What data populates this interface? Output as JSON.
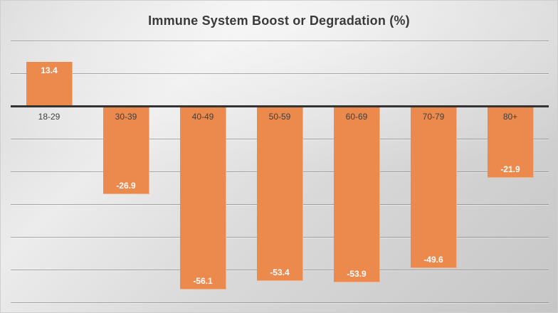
{
  "title": "Immune System Boost or Degradation (%)",
  "chart_data": {
    "type": "bar",
    "title": "Immune System Boost or Degradation (%)",
    "categories": [
      "18-29",
      "30-39",
      "40-49",
      "50-59",
      "60-69",
      "70-79",
      "80+"
    ],
    "values": [
      13.4,
      -26.9,
      -56.1,
      -53.4,
      -53.9,
      -49.6,
      -21.9
    ],
    "data_labels": [
      "13.4",
      "-26.9",
      "-56.1",
      "-53.4",
      "-53.9",
      "-49.6",
      "-21.9"
    ],
    "xlabel": "",
    "ylabel": "",
    "ylim": [
      -60,
      20
    ],
    "gridline_step": 10,
    "grid": true,
    "legend_position": "none",
    "colors": {
      "bar_fill": "#EC8A4D",
      "data_label_text": "#FFFFFF",
      "category_label_text": "#404040",
      "axis_line": "#333333",
      "gridline": "#6E6E6E",
      "title_text": "#3A3A3A",
      "background_light": "#ECECEC",
      "background_dark": "#C6C6C7"
    }
  }
}
